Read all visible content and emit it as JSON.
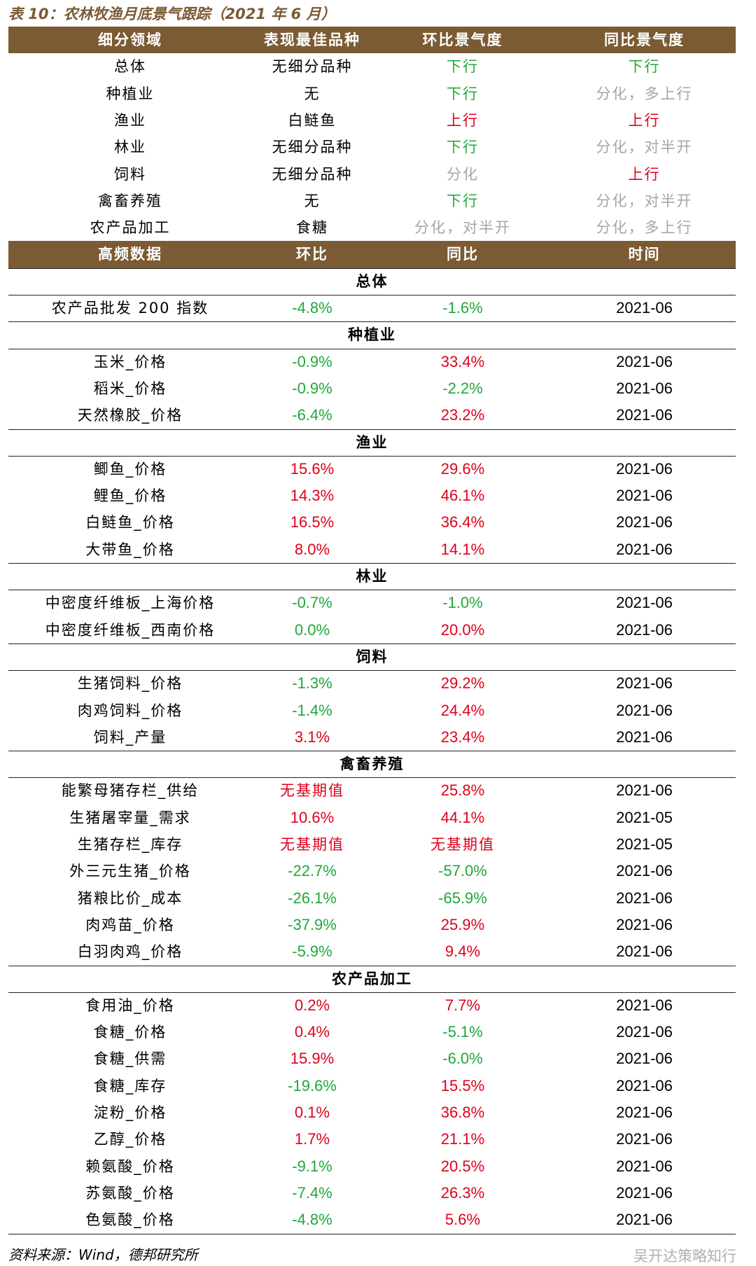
{
  "title": "表 10：农林牧渔月底景气跟踪（2021 年 6 月）",
  "summary_table": {
    "header": [
      "细分领域",
      "表现最佳品种",
      "环比景气度",
      "同比景气度"
    ],
    "rows": [
      [
        "总体",
        "无细分品种",
        "下行",
        "下行"
      ],
      [
        "种植业",
        "无",
        "下行",
        "分化，多上行"
      ],
      [
        "渔业",
        "白鲢鱼",
        "上行",
        "上行"
      ],
      [
        "林业",
        "无细分品种",
        "下行",
        "分化，对半开"
      ],
      [
        "饲料",
        "无细分品种",
        "分化",
        "上行"
      ],
      [
        "禽畜养殖",
        "无",
        "下行",
        "分化，对半开"
      ],
      [
        "农产品加工",
        "食糖",
        "分化，对半开",
        "分化，多上行"
      ]
    ],
    "colors": [
      [
        "#1fa83a",
        "#1fa83a"
      ],
      [
        "#1fa83a",
        "#a6a6a6"
      ],
      [
        "#e0001b",
        "#e0001b"
      ],
      [
        "#1fa83a",
        "#a6a6a6"
      ],
      [
        "#a6a6a6",
        "#e0001b"
      ],
      [
        "#1fa83a",
        "#a6a6a6"
      ],
      [
        "#a6a6a6",
        "#a6a6a6"
      ]
    ]
  },
  "detail_table": {
    "header": [
      "高频数据",
      "环比",
      "同比",
      "时间"
    ],
    "sections": [
      {
        "name": "总体",
        "rows": [
          [
            "农产品批发 200 指数",
            "-4.8%",
            "-1.6%",
            "2021-06"
          ]
        ],
        "colors": [
          [
            "#1fa83a",
            "#1fa83a"
          ]
        ]
      },
      {
        "name": "种植业",
        "rows": [
          [
            "玉米_价格",
            "-0.9%",
            "33.4%",
            "2021-06"
          ],
          [
            "稻米_价格",
            "-0.9%",
            "-2.2%",
            "2021-06"
          ],
          [
            "天然橡胶_价格",
            "-6.4%",
            "23.2%",
            "2021-06"
          ]
        ],
        "colors": [
          [
            "#1fa83a",
            "#e0001b"
          ],
          [
            "#1fa83a",
            "#1fa83a"
          ],
          [
            "#1fa83a",
            "#e0001b"
          ]
        ]
      },
      {
        "name": "渔业",
        "rows": [
          [
            "鲫鱼_价格",
            "15.6%",
            "29.6%",
            "2021-06"
          ],
          [
            "鲤鱼_价格",
            "14.3%",
            "46.1%",
            "2021-06"
          ],
          [
            "白鲢鱼_价格",
            "16.5%",
            "36.4%",
            "2021-06"
          ],
          [
            "大带鱼_价格",
            "8.0%",
            "14.1%",
            "2021-06"
          ]
        ],
        "colors": [
          [
            "#e0001b",
            "#e0001b"
          ],
          [
            "#e0001b",
            "#e0001b"
          ],
          [
            "#e0001b",
            "#e0001b"
          ],
          [
            "#e0001b",
            "#e0001b"
          ]
        ]
      },
      {
        "name": "林业",
        "rows": [
          [
            "中密度纤维板_上海价格",
            "-0.7%",
            "-1.0%",
            "2021-06"
          ],
          [
            "中密度纤维板_西南价格",
            "0.0%",
            "20.0%",
            "2021-06"
          ]
        ],
        "colors": [
          [
            "#1fa83a",
            "#1fa83a"
          ],
          [
            "#1fa83a",
            "#e0001b"
          ]
        ]
      },
      {
        "name": "饲料",
        "rows": [
          [
            "生猪饲料_价格",
            "-1.3%",
            "29.2%",
            "2021-06"
          ],
          [
            "肉鸡饲料_价格",
            "-1.4%",
            "24.4%",
            "2021-06"
          ],
          [
            "饲料_产量",
            "3.1%",
            "23.4%",
            "2021-06"
          ]
        ],
        "colors": [
          [
            "#1fa83a",
            "#e0001b"
          ],
          [
            "#1fa83a",
            "#e0001b"
          ],
          [
            "#e0001b",
            "#e0001b"
          ]
        ]
      },
      {
        "name": "禽畜养殖",
        "rows": [
          [
            "能繁母猪存栏_供给",
            "无基期值",
            "25.8%",
            "2021-06"
          ],
          [
            "生猪屠宰量_需求",
            "10.6%",
            "44.1%",
            "2021-05"
          ],
          [
            "生猪存栏_库存",
            "无基期值",
            "无基期值",
            "2021-05"
          ],
          [
            "外三元生猪_价格",
            "-22.7%",
            "-57.0%",
            "2021-06"
          ],
          [
            "猪粮比价_成本",
            "-26.1%",
            "-65.9%",
            "2021-06"
          ],
          [
            "肉鸡苗_价格",
            "-37.9%",
            "25.9%",
            "2021-06"
          ],
          [
            "白羽肉鸡_价格",
            "-5.9%",
            "9.4%",
            "2021-06"
          ]
        ],
        "colors": [
          [
            "#e0001b",
            "#e0001b"
          ],
          [
            "#e0001b",
            "#e0001b"
          ],
          [
            "#e0001b",
            "#e0001b"
          ],
          [
            "#1fa83a",
            "#1fa83a"
          ],
          [
            "#1fa83a",
            "#1fa83a"
          ],
          [
            "#1fa83a",
            "#e0001b"
          ],
          [
            "#1fa83a",
            "#e0001b"
          ]
        ]
      },
      {
        "name": "农产品加工",
        "rows": [
          [
            "食用油_价格",
            "0.2%",
            "7.7%",
            "2021-06"
          ],
          [
            "食糖_价格",
            "0.4%",
            "-5.1%",
            "2021-06"
          ],
          [
            "食糖_供需",
            "15.9%",
            "-6.0%",
            "2021-06"
          ],
          [
            "食糖_库存",
            "-19.6%",
            "15.5%",
            "2021-06"
          ],
          [
            "淀粉_价格",
            "0.1%",
            "36.8%",
            "2021-06"
          ],
          [
            "乙醇_价格",
            "1.7%",
            "21.1%",
            "2021-06"
          ],
          [
            "赖氨酸_价格",
            "-9.1%",
            "20.5%",
            "2021-06"
          ],
          [
            "苏氨酸_价格",
            "-7.4%",
            "26.3%",
            "2021-06"
          ],
          [
            "色氨酸_价格",
            "-4.8%",
            "5.6%",
            "2021-06"
          ]
        ],
        "colors": [
          [
            "#e0001b",
            "#e0001b"
          ],
          [
            "#e0001b",
            "#1fa83a"
          ],
          [
            "#e0001b",
            "#1fa83a"
          ],
          [
            "#1fa83a",
            "#e0001b"
          ],
          [
            "#e0001b",
            "#e0001b"
          ],
          [
            "#e0001b",
            "#e0001b"
          ],
          [
            "#1fa83a",
            "#e0001b"
          ],
          [
            "#1fa83a",
            "#e0001b"
          ],
          [
            "#1fa83a",
            "#e0001b"
          ]
        ]
      }
    ]
  },
  "source": "资料来源：Wind，德邦研究所",
  "watermark": "吴开达策略知行"
}
